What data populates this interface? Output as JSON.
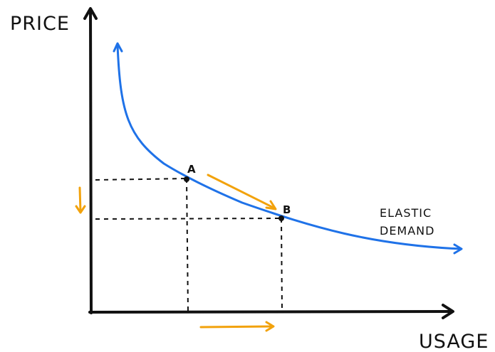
{
  "axes": {
    "y_label": "PRICE",
    "x_label": "USAGE"
  },
  "curve": {
    "label_line1": "ELASTIC",
    "label_line2": "DEMAND"
  },
  "points": {
    "a_label": "A",
    "b_label": "B"
  },
  "colors": {
    "curve": "#1f72e8",
    "arrows": "#f2a20c",
    "ink": "#111111"
  }
}
